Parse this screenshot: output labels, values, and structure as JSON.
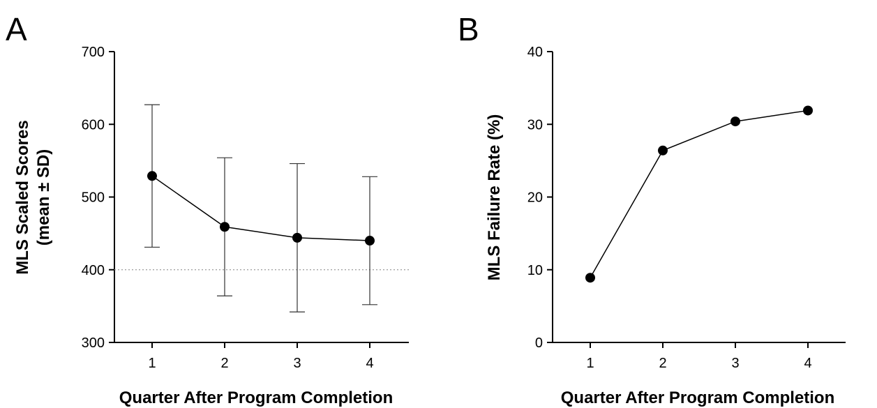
{
  "chart_data": [
    {
      "panel_label": "A",
      "type": "line",
      "ylabel_line1": "MLS Scaled Scores",
      "ylabel_line2": "(mean ± SD)",
      "xlabel": "Quarter After Program Completion",
      "categories": [
        "1",
        "2",
        "3",
        "4"
      ],
      "ylim": [
        300,
        700
      ],
      "yticks": [
        "300",
        "400",
        "500",
        "600",
        "700"
      ],
      "series": [
        {
          "values": [
            529,
            459,
            444,
            440
          ],
          "sd_lower": [
            431,
            364,
            342,
            352
          ],
          "sd_upper": [
            627,
            554,
            546,
            528
          ]
        }
      ],
      "reference_line": {
        "y": 400,
        "style": "dotted",
        "color": "#9a9a9a"
      },
      "error_bars": true,
      "grid": false
    },
    {
      "panel_label": "B",
      "type": "line",
      "ylabel_line1": "MLS Failure Rate (%)",
      "xlabel": "Quarter After Program Completion",
      "categories": [
        "1",
        "2",
        "3",
        "4"
      ],
      "ylim": [
        0,
        40
      ],
      "yticks": [
        "0",
        "10",
        "20",
        "30",
        "40"
      ],
      "series": [
        {
          "values": [
            8.9,
            26.4,
            30.4,
            31.9
          ]
        }
      ],
      "grid": false
    }
  ]
}
